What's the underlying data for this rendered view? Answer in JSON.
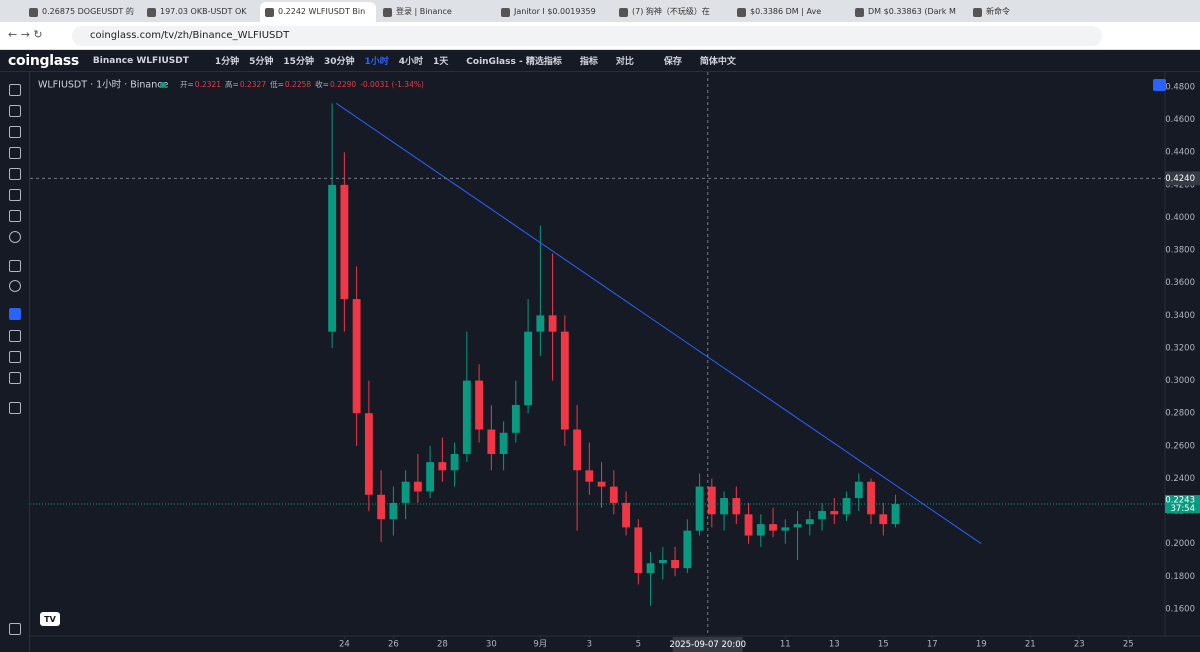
{
  "browser": {
    "tabs": [
      "0.26875 DOGEUSDT 的",
      "197.03 OKB-USDT OK",
      "0.2242 WLFIUSDT Bin",
      "登录 | Binance",
      "Janitor I $0.0019359",
      "(7) 狗神（不玩级）在",
      "$0.3386 DM | Ave",
      "DM $0.33863 (Dark M",
      "新命令"
    ],
    "url": "coinglass.com/tv/zh/Binance_WLFIUSDT"
  },
  "toolbar": {
    "logo": "coinglass",
    "symbol": "Binance WLFIUSDT",
    "intervals": [
      "1分钟",
      "5分钟",
      "15分钟",
      "30分钟",
      "1小时",
      "4小时",
      "1天"
    ],
    "items": [
      "CoinGlass - 精选指标",
      "指标",
      "对比",
      "保存",
      "简体中文"
    ]
  },
  "chart_data": {
    "type": "candlestick",
    "title": "WLFIUSDT · 1小时 · Binance",
    "legend_ohlc": [
      {
        "key": "开=",
        "value": "0.2321"
      },
      {
        "key": "高=",
        "value": "0.2327"
      },
      {
        "key": "低=",
        "value": "0.2258"
      },
      {
        "key": "收=",
        "value": "0.2290"
      }
    ],
    "legend_change": "-0.0031 (-1.34%)",
    "x": [
      "2025-08-23 12:00",
      "2025-08-24 00:00",
      "2025-08-24 12:00",
      "2025-08-25 00:00",
      "2025-08-25 12:00",
      "2025-08-26 00:00",
      "2025-08-26 12:00",
      "2025-08-27 00:00",
      "2025-08-27 12:00",
      "2025-08-28 00:00",
      "2025-08-28 12:00",
      "2025-08-29 00:00",
      "2025-08-29 12:00",
      "2025-08-30 00:00",
      "2025-08-30 12:00",
      "2025-08-31 00:00",
      "2025-08-31 12:00",
      "2025-09-01 00:00",
      "2025-09-01 12:00",
      "2025-09-02 00:00",
      "2025-09-02 12:00",
      "2025-09-03 00:00",
      "2025-09-03 12:00",
      "2025-09-04 00:00",
      "2025-09-04 12:00",
      "2025-09-05 00:00",
      "2025-09-05 12:00",
      "2025-09-06 00:00",
      "2025-09-06 12:00",
      "2025-09-07 00:00",
      "2025-09-07 12:00",
      "2025-09-08 00:00",
      "2025-09-08 12:00",
      "2025-09-09 00:00",
      "2025-09-09 12:00",
      "2025-09-10 00:00",
      "2025-09-10 12:00",
      "2025-09-11 00:00",
      "2025-09-11 12:00",
      "2025-09-12 00:00",
      "2025-09-12 12:00",
      "2025-09-13 00:00",
      "2025-09-13 12:00",
      "2025-09-14 00:00",
      "2025-09-14 12:00",
      "2025-09-15 00:00",
      "2025-09-15 12:00"
    ],
    "open": [
      0.33,
      0.42,
      0.35,
      0.28,
      0.23,
      0.215,
      0.225,
      0.238,
      0.232,
      0.25,
      0.245,
      0.255,
      0.3,
      0.27,
      0.255,
      0.268,
      0.285,
      0.33,
      0.34,
      0.33,
      0.27,
      0.245,
      0.238,
      0.235,
      0.225,
      0.21,
      0.182,
      0.188,
      0.19,
      0.185,
      0.208,
      0.235,
      0.218,
      0.228,
      0.218,
      0.205,
      0.212,
      0.208,
      0.21,
      0.212,
      0.215,
      0.22,
      0.218,
      0.228,
      0.238,
      0.218,
      0.212
    ],
    "high": [
      0.47,
      0.44,
      0.37,
      0.3,
      0.245,
      0.235,
      0.245,
      0.255,
      0.26,
      0.265,
      0.262,
      0.33,
      0.31,
      0.285,
      0.275,
      0.3,
      0.35,
      0.395,
      0.378,
      0.34,
      0.285,
      0.262,
      0.25,
      0.245,
      0.232,
      0.215,
      0.195,
      0.198,
      0.198,
      0.215,
      0.243,
      0.24,
      0.232,
      0.235,
      0.225,
      0.218,
      0.222,
      0.215,
      0.22,
      0.22,
      0.225,
      0.228,
      0.232,
      0.243,
      0.24,
      0.225,
      0.23
    ],
    "low": [
      0.32,
      0.33,
      0.26,
      0.22,
      0.201,
      0.205,
      0.215,
      0.225,
      0.228,
      0.238,
      0.235,
      0.25,
      0.262,
      0.245,
      0.245,
      0.262,
      0.28,
      0.315,
      0.3,
      0.26,
      0.208,
      0.23,
      0.222,
      0.218,
      0.205,
      0.175,
      0.162,
      0.178,
      0.18,
      0.182,
      0.205,
      0.21,
      0.208,
      0.212,
      0.2,
      0.198,
      0.204,
      0.2,
      0.19,
      0.205,
      0.208,
      0.212,
      0.214,
      0.22,
      0.212,
      0.205,
      0.21
    ],
    "close": [
      0.42,
      0.35,
      0.28,
      0.23,
      0.215,
      0.225,
      0.238,
      0.232,
      0.25,
      0.245,
      0.255,
      0.3,
      0.27,
      0.255,
      0.268,
      0.285,
      0.33,
      0.34,
      0.33,
      0.27,
      0.245,
      0.238,
      0.235,
      0.225,
      0.21,
      0.182,
      0.188,
      0.19,
      0.185,
      0.208,
      0.235,
      0.218,
      0.228,
      0.218,
      0.205,
      0.212,
      0.208,
      0.21,
      0.212,
      0.215,
      0.22,
      0.218,
      0.228,
      0.238,
      0.218,
      0.212,
      0.2243
    ],
    "up_color": "#089981",
    "down_color": "#f23645",
    "trendline": {
      "x": [
        "2025-08-23 16:00",
        "2025-09-19 00:00"
      ],
      "y": [
        0.47,
        0.2
      ],
      "color": "#2962ff"
    },
    "last_price": {
      "value": 0.2243,
      "label": "0.2243",
      "countdown": "37:54"
    },
    "crosshair": {
      "x": "2025-09-07 20:00",
      "y": {
        "value": 0.424,
        "label": "0.4240"
      }
    },
    "xlim": [
      "2025-08-11 04:00",
      "2025-09-26 12:00"
    ],
    "xticks": [
      {
        "value": "2025-08-24 00:00",
        "label": "24"
      },
      {
        "value": "2025-08-26 00:00",
        "label": "26"
      },
      {
        "value": "2025-08-28 00:00",
        "label": "28"
      },
      {
        "value": "2025-08-30 00:00",
        "label": "30"
      },
      {
        "value": "2025-09-01 00:00",
        "label": "9月"
      },
      {
        "value": "2025-09-03 00:00",
        "label": "3"
      },
      {
        "value": "2025-09-05 00:00",
        "label": "5"
      },
      {
        "value": "2025-09-11 00:00",
        "label": "11"
      },
      {
        "value": "2025-09-13 00:00",
        "label": "13"
      },
      {
        "value": "2025-09-15 00:00",
        "label": "15"
      },
      {
        "value": "2025-09-17 00:00",
        "label": "17"
      },
      {
        "value": "2025-09-19 00:00",
        "label": "19"
      },
      {
        "value": "2025-09-21 00:00",
        "label": "21"
      },
      {
        "value": "2025-09-23 00:00",
        "label": "23"
      },
      {
        "value": "2025-09-25 00:00",
        "label": "25"
      }
    ],
    "ylim": [
      0.1434,
      0.4892
    ],
    "yticks": [
      {
        "value": 0.48,
        "label": "0.4800"
      },
      {
        "value": 0.46,
        "label": "0.4600"
      },
      {
        "value": 0.44,
        "label": "0.4400"
      },
      {
        "value": 0.42,
        "label": "0.4200"
      },
      {
        "value": 0.4,
        "label": "0.4000"
      },
      {
        "value": 0.38,
        "label": "0.3800"
      },
      {
        "value": 0.36,
        "label": "0.3600"
      },
      {
        "value": 0.34,
        "label": "0.3400"
      },
      {
        "value": 0.32,
        "label": "0.3200"
      },
      {
        "value": 0.3,
        "label": "0.3000"
      },
      {
        "value": 0.28,
        "label": "0.2800"
      },
      {
        "value": 0.26,
        "label": "0.2600"
      },
      {
        "value": 0.24,
        "label": "0.2400"
      },
      {
        "value": 0.22,
        "label": "0.2200"
      },
      {
        "value": 0.2,
        "label": "0.2000"
      },
      {
        "value": 0.18,
        "label": "0.1800"
      },
      {
        "value": 0.16,
        "label": "0.1600"
      }
    ],
    "grid": false
  }
}
